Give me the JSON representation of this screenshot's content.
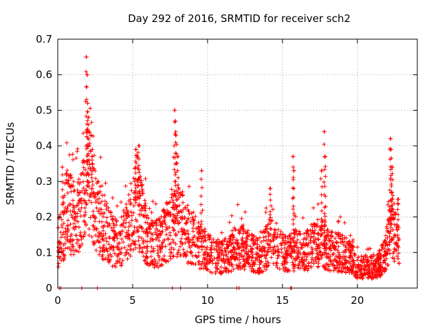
{
  "chart_data": {
    "type": "scatter",
    "title": "Day 292 of 2016, SRMTID for receiver sch2",
    "xlabel": "GPS time / hours",
    "ylabel": "SRMTID / TECUs",
    "xlim": [
      0,
      24
    ],
    "ylim": [
      0,
      0.7
    ],
    "xticks": [
      0,
      5,
      10,
      15,
      20
    ],
    "xtick_labels": [
      "0",
      "5",
      "10",
      "15",
      "20"
    ],
    "yticks": [
      0,
      0.1,
      0.2,
      0.3,
      0.4,
      0.5,
      0.6,
      0.7
    ],
    "ytick_labels": [
      "0",
      "0.1",
      "0.2",
      "0.3",
      "0.4",
      "0.5",
      "0.6",
      "0.7"
    ],
    "grid": true,
    "marker": "+",
    "color": "#ff0000",
    "series": [
      {
        "name": "SRMTID",
        "trend_x": [
          0,
          0.3,
          0.6,
          1.0,
          1.5,
          1.8,
          2.0,
          2.3,
          2.6,
          3.0,
          3.5,
          4.0,
          4.5,
          5.0,
          5.3,
          5.6,
          6.0,
          6.5,
          7.0,
          7.5,
          7.8,
          8.0,
          8.5,
          9.0,
          9.5,
          10.0,
          10.5,
          11.0,
          11.5,
          12.0,
          12.5,
          13.0,
          13.5,
          14.0,
          14.3,
          14.6,
          15.0,
          15.5,
          16.0,
          16.5,
          17.0,
          17.5,
          17.8,
          18.0,
          18.5,
          19.0,
          19.5,
          20.0,
          20.5,
          21.0,
          21.5,
          21.8,
          22.0,
          22.3,
          22.6,
          22.8
        ],
        "trend_y": [
          0.12,
          0.15,
          0.22,
          0.2,
          0.2,
          0.25,
          0.3,
          0.28,
          0.2,
          0.18,
          0.14,
          0.12,
          0.15,
          0.22,
          0.25,
          0.2,
          0.13,
          0.12,
          0.14,
          0.17,
          0.2,
          0.19,
          0.16,
          0.14,
          0.12,
          0.1,
          0.09,
          0.09,
          0.1,
          0.12,
          0.11,
          0.1,
          0.09,
          0.12,
          0.14,
          0.11,
          0.1,
          0.1,
          0.11,
          0.1,
          0.12,
          0.13,
          0.12,
          0.11,
          0.1,
          0.1,
          0.09,
          0.06,
          0.06,
          0.06,
          0.07,
          0.09,
          0.12,
          0.18,
          0.14,
          0.1
        ],
        "peaks": [
          {
            "x": 0.3,
            "y": 0.34
          },
          {
            "x": 1.9,
            "y": 0.65
          },
          {
            "x": 1.95,
            "y": 0.6
          },
          {
            "x": 2.0,
            "y": 0.52
          },
          {
            "x": 2.05,
            "y": 0.48
          },
          {
            "x": 2.3,
            "y": 0.37
          },
          {
            "x": 5.2,
            "y": 0.39
          },
          {
            "x": 5.4,
            "y": 0.4
          },
          {
            "x": 7.8,
            "y": 0.5
          },
          {
            "x": 7.85,
            "y": 0.47
          },
          {
            "x": 7.9,
            "y": 0.43
          },
          {
            "x": 8.0,
            "y": 0.37
          },
          {
            "x": 9.6,
            "y": 0.33
          },
          {
            "x": 14.2,
            "y": 0.28
          },
          {
            "x": 15.7,
            "y": 0.37
          },
          {
            "x": 15.75,
            "y": 0.33
          },
          {
            "x": 17.8,
            "y": 0.44
          },
          {
            "x": 17.85,
            "y": 0.37
          },
          {
            "x": 17.6,
            "y": 0.33
          },
          {
            "x": 22.2,
            "y": 0.42
          },
          {
            "x": 22.25,
            "y": 0.39
          },
          {
            "x": 22.3,
            "y": 0.34
          },
          {
            "x": 22.7,
            "y": 0.25
          }
        ],
        "zero_marks_x": [
          0.1,
          0.2,
          1.6,
          2.65,
          7.65,
          8.2,
          11.95,
          12.1,
          15.55,
          15.6
        ]
      }
    ]
  }
}
